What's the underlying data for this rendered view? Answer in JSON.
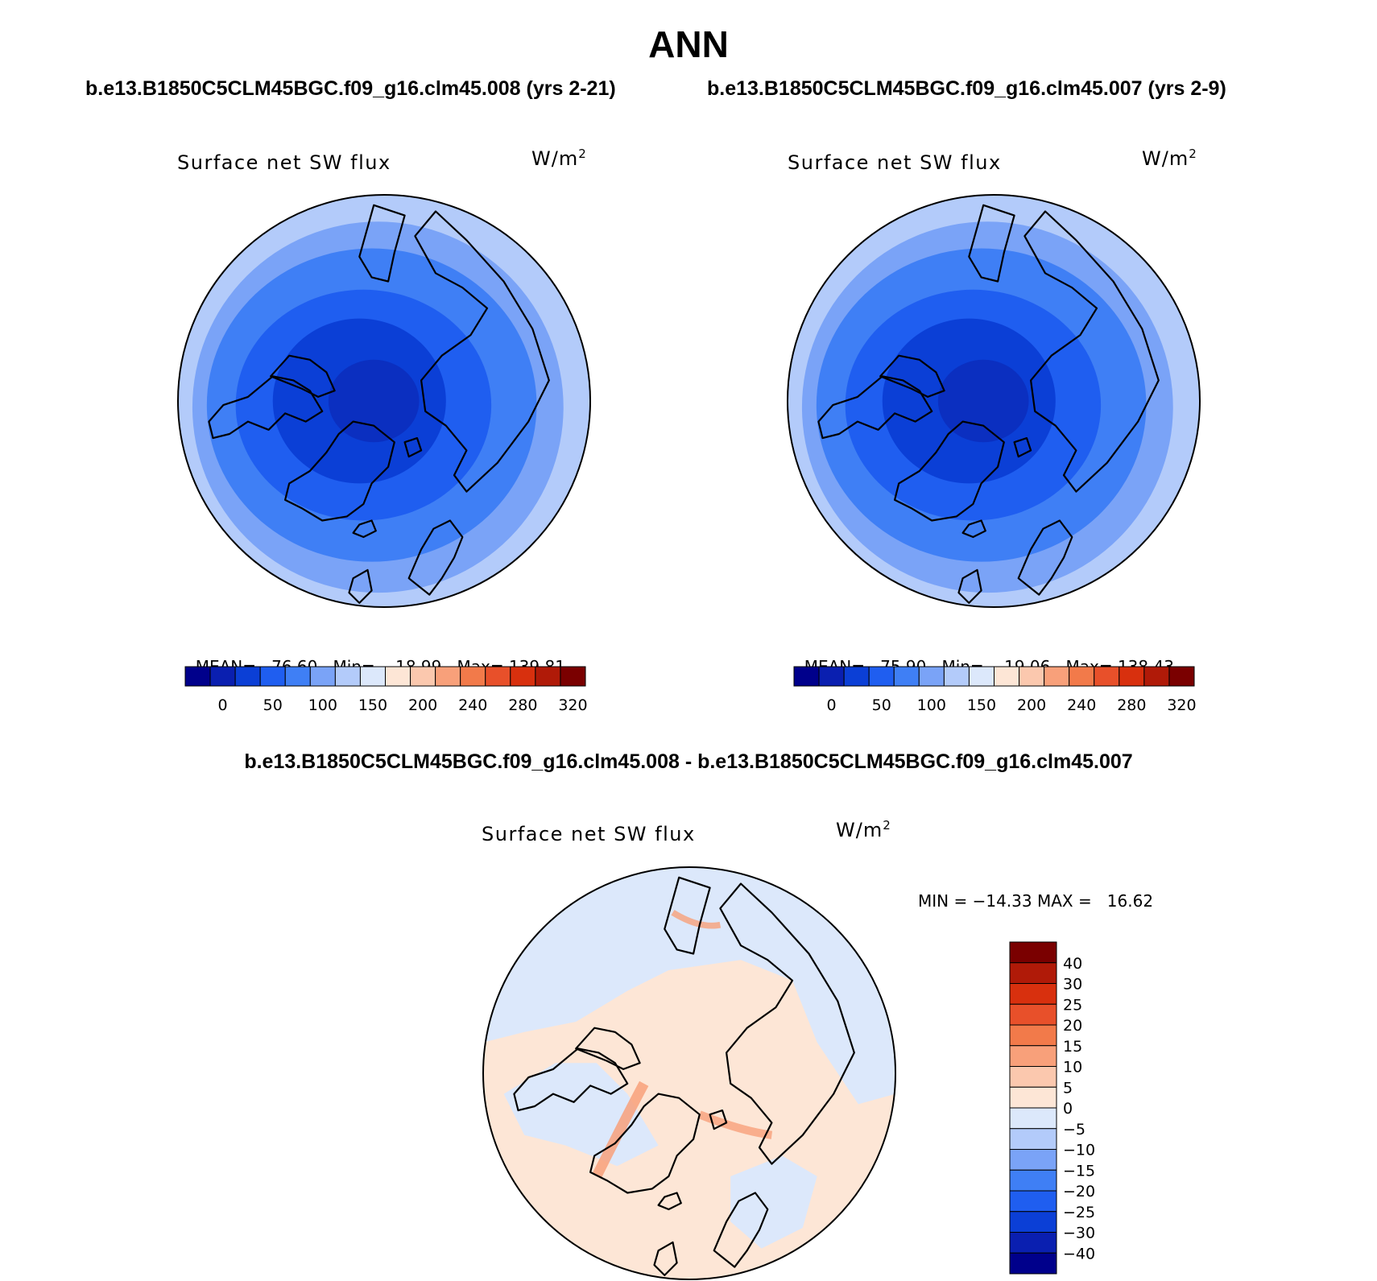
{
  "main_title": "ANN",
  "panels": [
    {
      "case_title": "b.e13.B1850C5CLM45BGC.f09_g16.clm45.008 (yrs 2-21)",
      "var_title": "Surface net SW flux",
      "units": "W/m",
      "units_exp": "2",
      "stats": {
        "mean_label": "MEAN=",
        "mean": "76.60",
        "min_label": "Min=",
        "min": "18.99",
        "max_label": "Max=",
        "max": "139.81"
      }
    },
    {
      "case_title": "b.e13.B1850C5CLM45BGC.f09_g16.clm45.007 (yrs 2-9)",
      "var_title": "Surface net SW flux",
      "units": "W/m",
      "units_exp": "2",
      "stats": {
        "mean_label": "MEAN=",
        "mean": "75.90",
        "min_label": "Min=",
        "min": "19.06",
        "max_label": "Max=",
        "max": "138.43"
      }
    }
  ],
  "diff_panel": {
    "title": "b.e13.B1850C5CLM45BGC.f09_g16.clm45.008 - b.e13.B1850C5CLM45BGC.f09_g16.clm45.007",
    "var_title": "Surface net SW flux",
    "units": "W/m",
    "units_exp": "2",
    "minmax": "MIN = −14.33 MAX =   16.62"
  },
  "colorbar_abs": {
    "colors": [
      "#00008b",
      "#0a1fb0",
      "#0b3fd6",
      "#1f5ef0",
      "#3f7ff5",
      "#7aa3f7",
      "#b3cbfa",
      "#dce8fb",
      "#fde6d6",
      "#fbc8ae",
      "#f8a07a",
      "#f27a4a",
      "#e8502a",
      "#d8300e",
      "#b01a08",
      "#7a0000"
    ],
    "labels": [
      "0",
      "50",
      "100",
      "150",
      "200",
      "240",
      "280",
      "320"
    ]
  },
  "colorbar_diff": {
    "colors": [
      "#7a0000",
      "#b01a08",
      "#d8300e",
      "#e8502a",
      "#f27a4a",
      "#f8a07a",
      "#fbc8ae",
      "#fde6d6",
      "#dce8fb",
      "#b3cbfa",
      "#7aa3f7",
      "#3f7ff5",
      "#1f5ef0",
      "#0b3fd6",
      "#0a1fb0",
      "#00008b"
    ],
    "labels": [
      "40",
      "30",
      "25",
      "20",
      "15",
      "10",
      "5",
      "0",
      "−5",
      "−10",
      "−15",
      "−20",
      "−25",
      "−30",
      "−40"
    ]
  },
  "map_colors": {
    "pole": "#0b2fc0",
    "core": "#0b3fd6",
    "inner": "#1f5ef0",
    "mid": "#3f7ff5",
    "outer": "#7aa3f7",
    "edge": "#b3cbfa",
    "diff_pos": "#fde6d6",
    "diff_neg": "#dce8fb",
    "diff_streak": "#f8a07a",
    "coast": "#000000"
  }
}
